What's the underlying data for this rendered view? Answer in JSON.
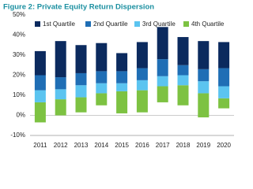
{
  "chart_data": {
    "type": "floating-stacked-bar",
    "title": "Figure 2: Private Equity Return Dispersion",
    "categories": [
      "2011",
      "2012",
      "2013",
      "2014",
      "2015",
      "2016",
      "2017",
      "2018",
      "2019",
      "2020"
    ],
    "base": [
      -3.5,
      0,
      1.5,
      5,
      1,
      1.5,
      6.5,
      5,
      -1,
      3.5
    ],
    "series": [
      {
        "name": "1st Quartile",
        "color": "#0b2a5e",
        "values": [
          12,
          18,
          14,
          14,
          9,
          13,
          16,
          14,
          14,
          13
        ]
      },
      {
        "name": "2nd Quartile",
        "color": "#1f6eb5",
        "values": [
          7.5,
          6,
          6,
          6,
          6,
          6,
          8.5,
          5,
          6,
          9
        ]
      },
      {
        "name": "3rd Quartile",
        "color": "#5bc4f0",
        "values": [
          6,
          5,
          6,
          5,
          4,
          5,
          5,
          5,
          6,
          6
        ]
      },
      {
        "name": "4th Quartile",
        "color": "#7dc242",
        "values": [
          10,
          8,
          7.5,
          6,
          11,
          11,
          8,
          10,
          12,
          5
        ]
      }
    ],
    "ylim": [
      -10,
      50
    ],
    "yticks": [
      {
        "value": -10,
        "label": "-10%"
      },
      {
        "value": 0,
        "label": "0%"
      },
      {
        "value": 10,
        "label": "10%"
      },
      {
        "value": 20,
        "label": "20%"
      },
      {
        "value": 30,
        "label": "30%"
      },
      {
        "value": 40,
        "label": "40%"
      },
      {
        "value": 50,
        "label": "50%"
      }
    ]
  }
}
